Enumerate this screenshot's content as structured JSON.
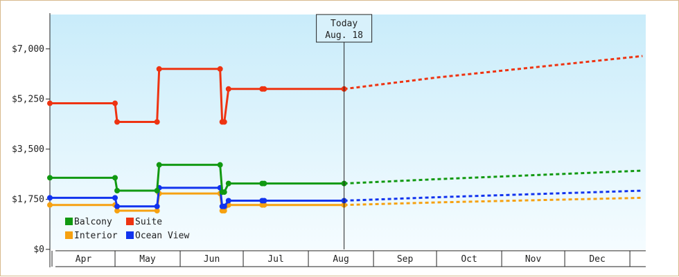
{
  "chart_data": {
    "type": "line",
    "title": "",
    "xlabel": "",
    "ylabel": "",
    "y_ticks": [
      "$0",
      "$1,750",
      "$3,500",
      "$5,250",
      "$7,000"
    ],
    "ylim": [
      0,
      8200
    ],
    "x_months": [
      "Apr",
      "May",
      "Jun",
      "Jul",
      "Aug",
      "Sep",
      "Oct",
      "Nov",
      "Dec"
    ],
    "today": {
      "line1": "Today",
      "line2": "Aug. 18",
      "date": "2018-08-18"
    },
    "grid": false,
    "legend_position": "bottom-left",
    "series": [
      {
        "name": "Balcony",
        "color": "#119911",
        "points": [
          [
            "2018-03-31",
            2500
          ],
          [
            "2018-05-01",
            2500
          ],
          [
            "2018-05-02",
            2050
          ],
          [
            "2018-05-21",
            2050
          ],
          [
            "2018-05-22",
            2950
          ],
          [
            "2018-06-20",
            2950
          ],
          [
            "2018-06-21",
            2000
          ],
          [
            "2018-06-22",
            2000
          ],
          [
            "2018-06-24",
            2300
          ],
          [
            "2018-07-10",
            2300
          ],
          [
            "2018-07-11",
            2300
          ],
          [
            "2018-08-18",
            2300
          ]
        ],
        "forecast": [
          [
            "2018-08-18",
            2300
          ],
          [
            "2018-10-01",
            2450
          ],
          [
            "2019-01-07",
            2750
          ]
        ]
      },
      {
        "name": "Suite",
        "color": "#ee3311",
        "points": [
          [
            "2018-03-31",
            5100
          ],
          [
            "2018-05-01",
            5100
          ],
          [
            "2018-05-02",
            4450
          ],
          [
            "2018-05-21",
            4450
          ],
          [
            "2018-05-22",
            6300
          ],
          [
            "2018-06-20",
            6300
          ],
          [
            "2018-06-21",
            4450
          ],
          [
            "2018-06-22",
            4450
          ],
          [
            "2018-06-24",
            5600
          ],
          [
            "2018-07-10",
            5600
          ],
          [
            "2018-07-11",
            5600
          ],
          [
            "2018-08-18",
            5600
          ]
        ],
        "forecast": [
          [
            "2018-08-18",
            5600
          ],
          [
            "2018-10-01",
            6000
          ],
          [
            "2019-01-07",
            6750
          ]
        ]
      },
      {
        "name": "Interior",
        "color": "#f6a111",
        "points": [
          [
            "2018-03-31",
            1550
          ],
          [
            "2018-05-01",
            1550
          ],
          [
            "2018-05-02",
            1350
          ],
          [
            "2018-05-21",
            1350
          ],
          [
            "2018-05-22",
            1950
          ],
          [
            "2018-06-20",
            1950
          ],
          [
            "2018-06-21",
            1350
          ],
          [
            "2018-06-22",
            1350
          ],
          [
            "2018-06-24",
            1550
          ],
          [
            "2018-07-10",
            1550
          ],
          [
            "2018-07-11",
            1550
          ],
          [
            "2018-08-18",
            1550
          ]
        ],
        "forecast": [
          [
            "2018-08-18",
            1550
          ],
          [
            "2018-10-01",
            1640
          ],
          [
            "2019-01-07",
            1800
          ]
        ]
      },
      {
        "name": "Ocean View",
        "color": "#1133ee",
        "points": [
          [
            "2018-03-31",
            1800
          ],
          [
            "2018-05-01",
            1800
          ],
          [
            "2018-05-02",
            1500
          ],
          [
            "2018-05-21",
            1500
          ],
          [
            "2018-05-22",
            2150
          ],
          [
            "2018-06-20",
            2150
          ],
          [
            "2018-06-21",
            1500
          ],
          [
            "2018-06-22",
            1500
          ],
          [
            "2018-06-24",
            1700
          ],
          [
            "2018-07-10",
            1700
          ],
          [
            "2018-07-11",
            1700
          ],
          [
            "2018-08-18",
            1700
          ]
        ],
        "forecast": [
          [
            "2018-08-18",
            1700
          ],
          [
            "2018-10-01",
            1820
          ],
          [
            "2019-01-07",
            2050
          ]
        ]
      }
    ],
    "markers": {
      "Balcony": [
        [
          "2018-03-31",
          2500
        ],
        [
          "2018-05-01",
          2500
        ],
        [
          "2018-05-02",
          2050
        ],
        [
          "2018-05-21",
          2050
        ],
        [
          "2018-05-22",
          2950
        ],
        [
          "2018-06-20",
          2950
        ],
        [
          "2018-06-21",
          2000
        ],
        [
          "2018-06-22",
          2000
        ],
        [
          "2018-06-24",
          2300
        ],
        [
          "2018-07-10",
          2300
        ],
        [
          "2018-07-11",
          2300
        ],
        [
          "2018-08-18",
          2300
        ]
      ],
      "Suite": [
        [
          "2018-03-31",
          5100
        ],
        [
          "2018-05-01",
          5100
        ],
        [
          "2018-05-02",
          4450
        ],
        [
          "2018-05-21",
          4450
        ],
        [
          "2018-05-22",
          6300
        ],
        [
          "2018-06-20",
          6300
        ],
        [
          "2018-06-21",
          4450
        ],
        [
          "2018-06-22",
          4450
        ],
        [
          "2018-06-24",
          5600
        ],
        [
          "2018-07-10",
          5600
        ],
        [
          "2018-07-11",
          5600
        ],
        [
          "2018-08-18",
          5600
        ]
      ],
      "Interior": [
        [
          "2018-03-31",
          1550
        ],
        [
          "2018-05-01",
          1550
        ],
        [
          "2018-05-02",
          1350
        ],
        [
          "2018-05-21",
          1350
        ],
        [
          "2018-05-22",
          1950
        ],
        [
          "2018-06-20",
          1950
        ],
        [
          "2018-06-21",
          1350
        ],
        [
          "2018-06-22",
          1350
        ],
        [
          "2018-06-24",
          1550
        ],
        [
          "2018-07-10",
          1550
        ],
        [
          "2018-07-11",
          1550
        ],
        [
          "2018-08-18",
          1550
        ]
      ],
      "Ocean View": [
        [
          "2018-03-31",
          1800
        ],
        [
          "2018-05-01",
          1800
        ],
        [
          "2018-05-02",
          1500
        ],
        [
          "2018-05-21",
          1500
        ],
        [
          "2018-05-22",
          2150
        ],
        [
          "2018-06-20",
          2150
        ],
        [
          "2018-06-21",
          1500
        ],
        [
          "2018-06-22",
          1500
        ],
        [
          "2018-06-24",
          1700
        ],
        [
          "2018-07-10",
          1700
        ],
        [
          "2018-07-11",
          1700
        ],
        [
          "2018-08-18",
          1700
        ]
      ]
    },
    "legend": [
      {
        "label": "Balcony",
        "color": "#119911"
      },
      {
        "label": "Suite",
        "color": "#ee3311"
      },
      {
        "label": "Interior",
        "color": "#f6a111"
      },
      {
        "label": "Ocean View",
        "color": "#1133ee"
      }
    ]
  }
}
